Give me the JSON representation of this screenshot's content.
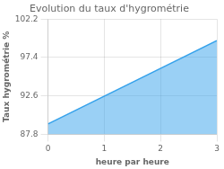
{
  "chart_data": {
    "type": "area",
    "title": "Evolution du taux d'hygrométrie",
    "x_label": "heure par heure",
    "y_label": "Taux hygrométrie %",
    "x": [
      0,
      3
    ],
    "values": [
      89.1,
      99.5
    ],
    "baseline": 87.8,
    "xlim": [
      0,
      3
    ],
    "xticks": [
      0,
      1,
      2,
      3
    ],
    "ylim": [
      87.8,
      102.2
    ],
    "yticks": [
      87.8,
      92.6,
      97.4,
      102.2
    ],
    "grid": true
  }
}
